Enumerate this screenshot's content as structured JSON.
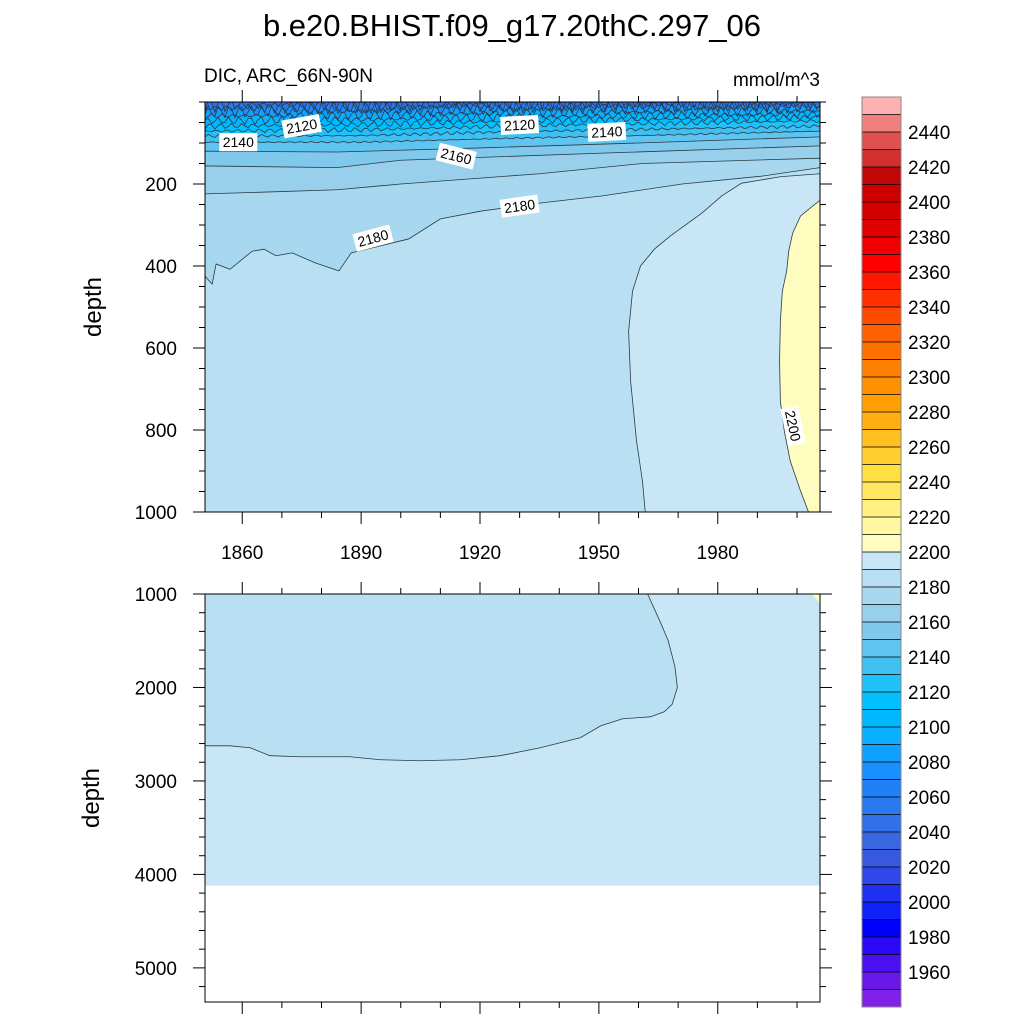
{
  "title": "b.e20.BHIST.f09_g17.20thC.297_06",
  "chart_data": {
    "type": "contour",
    "variable": "DIC, ARC_66N-90N",
    "units": "mmol/m^3",
    "ylabel": "depth",
    "xlabel": "",
    "x_range": [
      1850.6,
      2005.8
    ],
    "x_tick_labels": [
      "1860",
      "1890",
      "1920",
      "1950",
      "1980"
    ],
    "x_ticks": [
      1860,
      1890,
      1920,
      1950,
      1980
    ],
    "panels": [
      {
        "name": "upper",
        "y_range": [
          0,
          1000
        ],
        "y_tick_labels": [
          "200",
          "400",
          "600",
          "800",
          "1000"
        ],
        "y_ticks": [
          200,
          400,
          600,
          800,
          1000
        ],
        "y_minor_step": 50,
        "background_level": 2180,
        "contours": [
          {
            "level": 2190,
            "closed_right": true,
            "points": [
              [
                1961.7,
                1000
              ],
              [
                1961,
                925
              ],
              [
                1959.5,
                827
              ],
              [
                1958,
                680
              ],
              [
                1957.5,
                559
              ],
              [
                1958.5,
                461
              ],
              [
                1960.5,
                400
              ],
              [
                1964,
                359
              ],
              [
                1968,
                327
              ],
              [
                1976,
                271
              ],
              [
                1981,
                229
              ],
              [
                1986,
                198
              ],
              [
                1996,
                182
              ],
              [
                2005.8,
                175
              ]
            ]
          },
          {
            "level": 2180,
            "points": [
              [
                1850.6,
                425
              ],
              [
                1852.4,
                444
              ],
              [
                1853.4,
                395
              ],
              [
                1856.9,
                408
              ],
              [
                1862.5,
                364
              ],
              [
                1865.5,
                359
              ],
              [
                1868.5,
                375
              ],
              [
                1872.6,
                368
              ],
              [
                1878.6,
                393
              ],
              [
                1884.4,
                412
              ],
              [
                1887.5,
                368
              ],
              [
                1902,
                334
              ],
              [
                1910,
                285
              ],
              [
                1920.3,
                266
              ],
              [
                1935.5,
                246
              ],
              [
                1950.9,
                229
              ],
              [
                1971,
                200
              ],
              [
                1991,
                181
              ],
              [
                2005.8,
                160
              ]
            ]
          },
          {
            "level": 2170,
            "points": [
              [
                1850.6,
                224
              ],
              [
                1865,
                220
              ],
              [
                1884,
                214
              ],
              [
                1900,
                200
              ],
              [
                1935,
                175
              ],
              [
                1961,
                150
              ],
              [
                2005.8,
                137
              ]
            ]
          },
          {
            "level": 2160,
            "points": [
              [
                1850.6,
                156
              ],
              [
                1884,
                160
              ],
              [
                1900,
                142
              ],
              [
                1950,
                125
              ],
              [
                2005.8,
                107
              ]
            ]
          },
          {
            "level": 2150,
            "points": [
              [
                1850.6,
                120
              ],
              [
                1884,
                122
              ],
              [
                1920,
                112
              ],
              [
                1960,
                100
              ],
              [
                2005.8,
                85
              ]
            ]
          },
          {
            "level": 2140,
            "points": [
              [
                1850.6,
                98
              ],
              [
                1890,
                98
              ],
              [
                1930,
                88
              ],
              [
                1960,
                82
              ],
              [
                2005.8,
                71
              ]
            ]
          },
          {
            "level": 2130,
            "points": [
              [
                1850.6,
                83
              ],
              [
                1890,
                82
              ],
              [
                1930,
                72
              ],
              [
                2005.8,
                59
              ]
            ]
          },
          {
            "level": 2120,
            "points": [
              [
                1850.6,
                71
              ],
              [
                1890,
                68
              ],
              [
                1930,
                58
              ],
              [
                2005.8,
                46
              ]
            ]
          },
          {
            "level": 2110,
            "points": [
              [
                1850.6,
                59
              ],
              [
                1890,
                55
              ],
              [
                1930,
                46
              ],
              [
                2005.8,
                37
              ]
            ]
          },
          {
            "level": 2100,
            "points": [
              [
                1850.6,
                46
              ],
              [
                1890,
                43
              ],
              [
                1930,
                36
              ],
              [
                2005.8,
                29
              ]
            ]
          },
          {
            "level": 2090,
            "points": [
              [
                1850.6,
                34
              ],
              [
                1890,
                32
              ],
              [
                1930,
                26
              ],
              [
                2005.8,
                22
              ]
            ]
          },
          {
            "level": 2080,
            "points": [
              [
                1850.6,
                24
              ],
              [
                1890,
                22
              ],
              [
                1930,
                17
              ],
              [
                2005.8,
                12
              ]
            ]
          },
          {
            "level": 2070,
            "points": [
              [
                1850.6,
                15
              ],
              [
                1890,
                13
              ],
              [
                1930,
                10
              ],
              [
                2005.8,
                7
              ]
            ]
          },
          {
            "level": 2060,
            "points": [
              [
                1850.6,
                8
              ],
              [
                2005.8,
                4
              ]
            ]
          }
        ],
        "high_region": {
          "level": 2200,
          "points": [
            [
              2005.8,
              240
            ],
            [
              2003.9,
              254
            ],
            [
              2000.9,
              278
            ],
            [
              1998.9,
              320
            ],
            [
              1997.9,
              364
            ],
            [
              1997.4,
              412
            ],
            [
              1996.3,
              461
            ],
            [
              1995.8,
              534
            ],
            [
              1995.6,
              632
            ],
            [
              1995.8,
              730
            ],
            [
              1996.8,
              803
            ],
            [
              1998.3,
              876
            ],
            [
              2000.9,
              949
            ],
            [
              2002.9,
              1000
            ]
          ]
        },
        "contour_labels": [
          {
            "text": "2120",
            "x": 1875,
            "y": 59,
            "angle": -10
          },
          {
            "text": "2140",
            "x": 1859,
            "y": 98,
            "angle": 0
          },
          {
            "text": "2120",
            "x": 1930,
            "y": 56,
            "angle": -3
          },
          {
            "text": "2140",
            "x": 1952,
            "y": 73,
            "angle": -3
          },
          {
            "text": "2160",
            "x": 1914,
            "y": 132,
            "angle": 14
          },
          {
            "text": "2180",
            "x": 1930,
            "y": 254,
            "angle": -8
          },
          {
            "text": "2180",
            "x": 1893,
            "y": 332,
            "angle": -15
          },
          {
            "text": "2200",
            "x": 1999,
            "y": 790,
            "angle": 78
          }
        ]
      },
      {
        "name": "lower",
        "y_range": [
          1000,
          5365
        ],
        "data_bottom": 4120,
        "y_tick_labels": [
          "1000",
          "2000",
          "3000",
          "4000",
          "5000"
        ],
        "y_ticks": [
          1000,
          2000,
          3000,
          4000,
          5000
        ],
        "y_minor_step": 200,
        "background_level": 2190,
        "contours": [
          {
            "level": 2190,
            "points": [
              [
                1850.6,
                2624
              ],
              [
                1856.9,
                2624
              ],
              [
                1862,
                2645
              ],
              [
                1867,
                2730
              ],
              [
                1874.6,
                2741
              ],
              [
                1887.2,
                2741
              ],
              [
                1894.8,
                2773
              ],
              [
                1904.9,
                2784
              ],
              [
                1915,
                2773
              ],
              [
                1925.1,
                2730
              ],
              [
                1935.2,
                2645
              ],
              [
                1945.3,
                2538
              ],
              [
                1950.5,
                2410
              ],
              [
                1956,
                2335
              ],
              [
                1963,
                2314
              ],
              [
                1966.5,
                2260
              ],
              [
                1968.5,
                2180
              ],
              [
                1969.8,
                2000
              ],
              [
                1969.2,
                1780
              ],
              [
                1967.5,
                1500
              ],
              [
                1965.5,
                1300
              ],
              [
                1962.3,
                1000
              ]
            ]
          }
        ],
        "high_region": {
          "level": 2200,
          "points": [
            [
              2003.8,
              1000
            ],
            [
              2005.8,
              1000
            ],
            [
              2005.8,
              1100
            ]
          ]
        },
        "contour_labels": []
      }
    ],
    "colorbar": {
      "levels_min": 1950,
      "levels_max": 2450,
      "step": 10,
      "tick_labels": [
        "1960",
        "1980",
        "2000",
        "2020",
        "2040",
        "2060",
        "2080",
        "2100",
        "2120",
        "2140",
        "2160",
        "2180",
        "2200",
        "2220",
        "2240",
        "2260",
        "2280",
        "2300",
        "2320",
        "2340",
        "2360",
        "2380",
        "2400",
        "2420",
        "2440"
      ],
      "colors": [
        "#8020e8",
        "#6a18e8",
        "#4a10f0",
        "#2a08f8",
        "#0000ff",
        "#1020f8",
        "#2030f0",
        "#3048e8",
        "#3858e0",
        "#3868e0",
        "#3070e8",
        "#2878f0",
        "#2080f8",
        "#1890ff",
        "#10a0ff",
        "#08b0ff",
        "#00b8ff",
        "#00c0ff",
        "#20c0f8",
        "#40c0f0",
        "#60c4f0",
        "#80c8ec",
        "#98d0ec",
        "#a8d8f0",
        "#b8e0f2",
        "#c8e6f6",
        "#fffcc0",
        "#fff8a0",
        "#fff080",
        "#ffe860",
        "#ffe040",
        "#ffd030",
        "#ffc020",
        "#ffb010",
        "#ffa000",
        "#ff9000",
        "#ff8000",
        "#ff7000",
        "#ff6000",
        "#ff4800",
        "#ff3000",
        "#ff1800",
        "#ff0000",
        "#f00000",
        "#e00000",
        "#d40000",
        "#cc0000",
        "#c00808",
        "#d03030",
        "#e05050",
        "#f08080",
        "#ffb0b0"
      ]
    }
  }
}
